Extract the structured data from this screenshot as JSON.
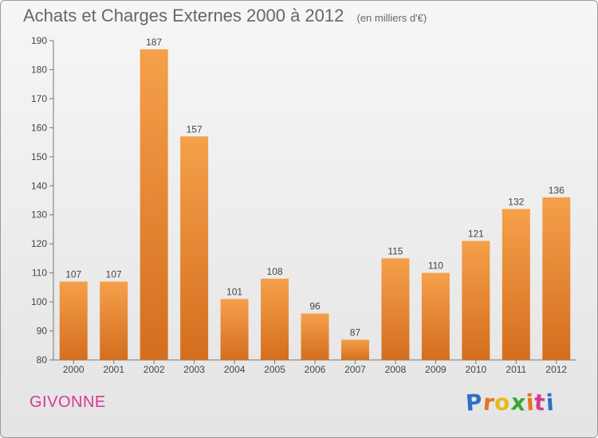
{
  "chart_data": {
    "type": "bar",
    "title": "Achats et Charges Externes 2000 à 2012",
    "unit": "(en milliers d'€)",
    "categories": [
      "2000",
      "2001",
      "2002",
      "2003",
      "2004",
      "2005",
      "2006",
      "2007",
      "2008",
      "2009",
      "2010",
      "2011",
      "2012"
    ],
    "values": [
      107,
      107,
      187,
      157,
      101,
      108,
      96,
      87,
      115,
      110,
      121,
      132,
      136
    ],
    "ylim": [
      80,
      190
    ],
    "yticks": [
      80,
      90,
      100,
      110,
      120,
      130,
      140,
      150,
      160,
      170,
      180,
      190
    ],
    "grid": false,
    "bar_color_top": "#f5a04a",
    "bar_color_bottom": "#d46e1e"
  },
  "footer": {
    "commune": "GIVONNE",
    "logo_text": "Proxiti",
    "logo_letters": [
      {
        "ch": "P",
        "color": "#2f6fc4"
      },
      {
        "ch": "r",
        "color": "#e8731c"
      },
      {
        "ch": "o",
        "color": "#e8b91c"
      },
      {
        "ch": "x",
        "color": "#3aa535"
      },
      {
        "ch": "i",
        "color": "#e8731c"
      },
      {
        "ch": "t",
        "color": "#d63a8f"
      },
      {
        "ch": "i",
        "color": "#2f6fc4"
      }
    ]
  }
}
